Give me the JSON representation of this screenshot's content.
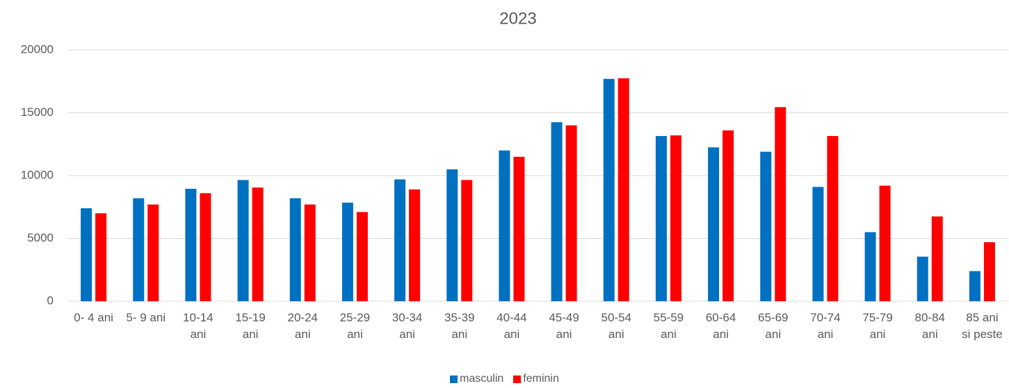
{
  "chart_data": {
    "type": "bar",
    "title": "2023",
    "categories": [
      "0- 4 ani",
      "5- 9 ani",
      "10-14\nani",
      "15-19\nani",
      "20-24\nani",
      "25-29\nani",
      "30-34\nani",
      "35-39\nani",
      "40-44\nani",
      "45-49\nani",
      "50-54\nani",
      "55-59\nani",
      "60-64\nani",
      "65-69\nani",
      "70-74\nani",
      "75-79\nani",
      "80-84\nani",
      "85 ani\nsi peste"
    ],
    "series": [
      {
        "name": "masculin",
        "color": "#0070c0",
        "values": [
          7400,
          8200,
          8950,
          9650,
          8200,
          7850,
          9700,
          10500,
          12000,
          14250,
          17700,
          13150,
          12250,
          11900,
          9100,
          5500,
          3550,
          2400
        ]
      },
      {
        "name": "feminin",
        "color": "#ff0000",
        "values": [
          7000,
          7700,
          8600,
          9050,
          7700,
          7100,
          8900,
          9650,
          11500,
          14000,
          17750,
          13200,
          13600,
          15450,
          13150,
          9200,
          6750,
          4700
        ]
      }
    ],
    "ylim": [
      0,
      20000
    ],
    "yticks": [
      0,
      5000,
      10000,
      15000,
      20000
    ],
    "grid": true,
    "legend": "bottom"
  }
}
